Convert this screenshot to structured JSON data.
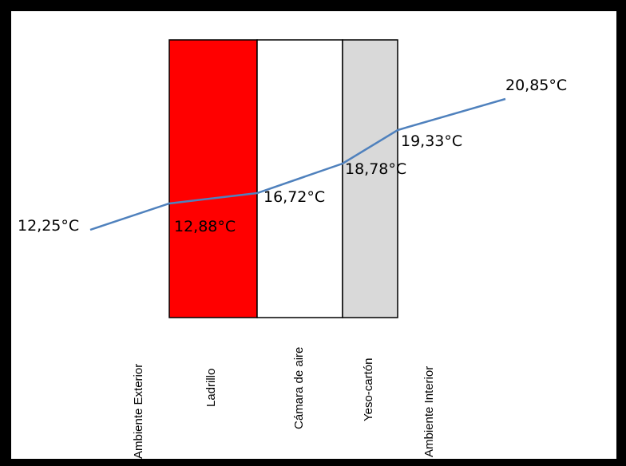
{
  "diagram": {
    "layers": [
      {
        "name": "Ladrillo",
        "color": "#ff0000"
      },
      {
        "name": "Cámara de aire",
        "color": "#ffffff"
      },
      {
        "name": "Yeso-cartón",
        "color": "#d9d9d9"
      }
    ],
    "zone_labels": [
      "Ambiente Exterior",
      "Ladrillo",
      "Cámara de aire",
      "Yeso-cartón",
      "Ambiente Interior"
    ],
    "temperatures": [
      {
        "label": "12,25°C",
        "value": 12.25
      },
      {
        "label": "12,88°C",
        "value": 12.88
      },
      {
        "label": "16,72°C",
        "value": 16.72
      },
      {
        "label": "18,78°C",
        "value": 18.78
      },
      {
        "label": "19,33°C",
        "value": 19.33
      },
      {
        "label": "20,85°C",
        "value": 20.85
      }
    ],
    "line_color": "#4f81bd",
    "border_color": "#000000"
  }
}
